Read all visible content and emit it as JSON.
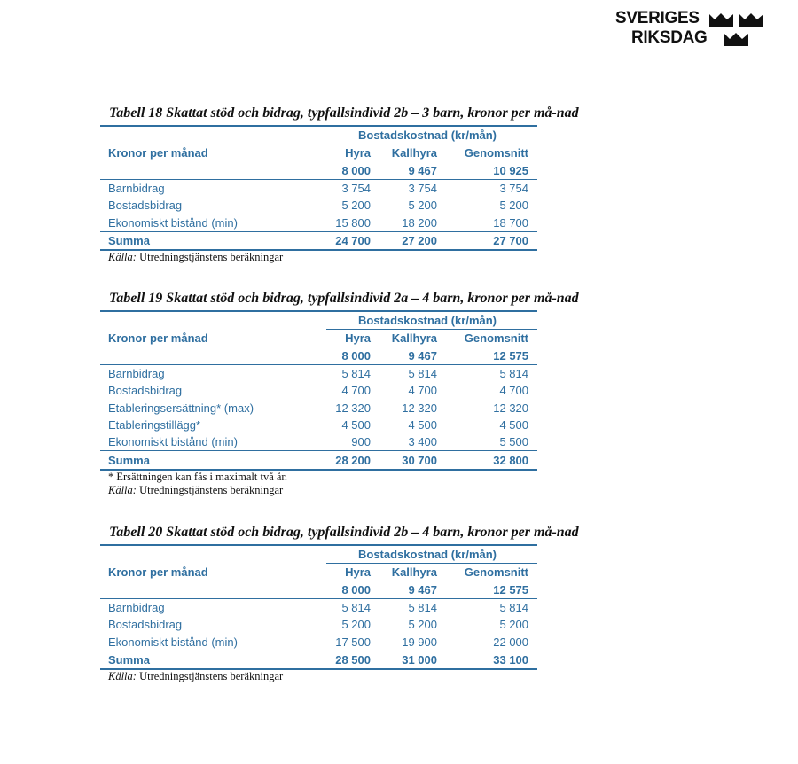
{
  "logo": {
    "line1": "SVERIGES",
    "line2": "RIKSDAG"
  },
  "tables": [
    {
      "title": "Tabell 18 Skattat stöd och bidrag, typfallsindivid 2b – 3 barn, kronor per må-nad",
      "group_header": "Bostadskostnad (kr/mån)",
      "row_header": "Kronor per månad",
      "columns": [
        {
          "name": "Hyra",
          "amount": "8 000"
        },
        {
          "name": "Kallhyra",
          "amount": "9 467"
        },
        {
          "name": "Genomsnitt",
          "amount": "10 925"
        }
      ],
      "rows": [
        {
          "label": "Barnbidrag",
          "values": [
            "3 754",
            "3 754",
            "3 754"
          ]
        },
        {
          "label": "Bostadsbidrag",
          "values": [
            "5 200",
            "5 200",
            "5 200"
          ]
        },
        {
          "label": "Ekonomiskt bistånd (min)",
          "values": [
            "15 800",
            "18 200",
            "18 700"
          ]
        }
      ],
      "summary": {
        "label": "Summa",
        "values": [
          "24 700",
          "27 200",
          "27 700"
        ]
      },
      "footnote": "",
      "source_label": "Källa:",
      "source_text": "Utredningstjänstens beräkningar"
    },
    {
      "title": "Tabell 19 Skattat stöd och bidrag, typfallsindivid 2a – 4 barn, kronor per må-nad",
      "group_header": "Bostadskostnad (kr/mån)",
      "row_header": "Kronor per månad",
      "columns": [
        {
          "name": "Hyra",
          "amount": "8 000"
        },
        {
          "name": "Kallhyra",
          "amount": "9 467"
        },
        {
          "name": "Genomsnitt",
          "amount": "12 575"
        }
      ],
      "rows": [
        {
          "label": "Barnbidrag",
          "values": [
            "5 814",
            "5 814",
            "5 814"
          ]
        },
        {
          "label": "Bostadsbidrag",
          "values": [
            "4 700",
            "4 700",
            "4 700"
          ]
        },
        {
          "label": "Etableringsersättning* (max)",
          "values": [
            "12 320",
            "12 320",
            "12 320"
          ]
        },
        {
          "label": "Etableringstillägg*",
          "values": [
            "4 500",
            "4 500",
            "4 500"
          ]
        },
        {
          "label": "Ekonomiskt bistånd (min)",
          "values": [
            "900",
            "3 400",
            "5 500"
          ]
        }
      ],
      "summary": {
        "label": "Summa",
        "values": [
          "28 200",
          "30 700",
          "32 800"
        ]
      },
      "footnote": "* Ersättningen kan fås i maximalt två år.",
      "source_label": "Källa:",
      "source_text": "Utredningstjänstens beräkningar"
    },
    {
      "title": "Tabell 20 Skattat stöd och bidrag, typfallsindivid 2b – 4 barn, kronor per må-nad",
      "group_header": "Bostadskostnad (kr/mån)",
      "row_header": "Kronor per månad",
      "columns": [
        {
          "name": "Hyra",
          "amount": "8 000"
        },
        {
          "name": "Kallhyra",
          "amount": "9 467"
        },
        {
          "name": "Genomsnitt",
          "amount": "12 575"
        }
      ],
      "rows": [
        {
          "label": "Barnbidrag",
          "values": [
            "5 814",
            "5 814",
            "5 814"
          ]
        },
        {
          "label": "Bostadsbidrag",
          "values": [
            "5 200",
            "5 200",
            "5 200"
          ]
        },
        {
          "label": "Ekonomiskt bistånd (min)",
          "values": [
            "17 500",
            "19 900",
            "22 000"
          ]
        }
      ],
      "summary": {
        "label": "Summa",
        "values": [
          "28 500",
          "31 000",
          "33 100"
        ]
      },
      "footnote": "",
      "source_label": "Källa:",
      "source_text": "Utredningstjänstens beräkningar"
    }
  ],
  "colors": {
    "table_blue": "#2f6fa0",
    "text": "#111111"
  }
}
